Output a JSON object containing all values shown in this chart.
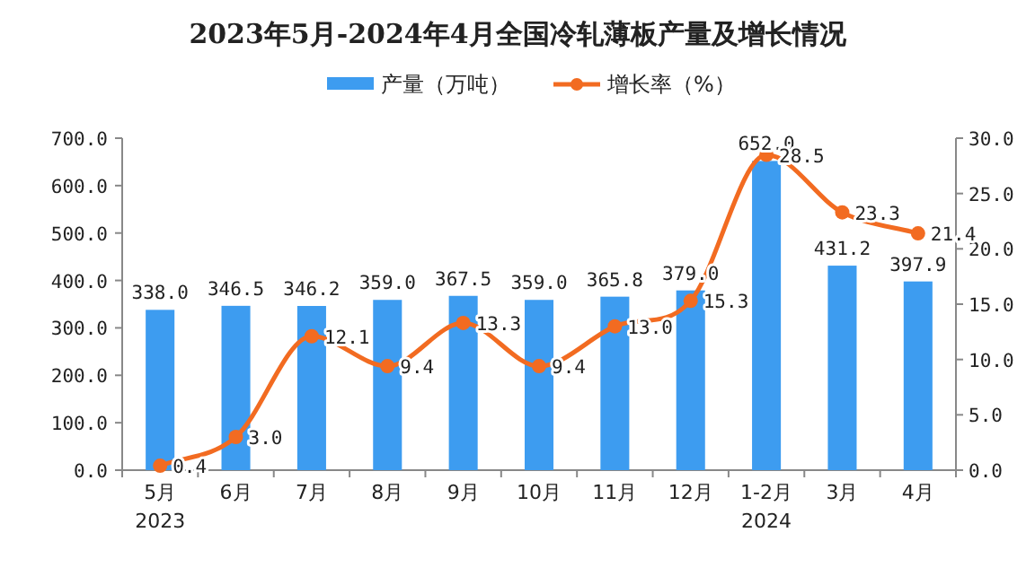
{
  "chart_data": {
    "type": "bar",
    "title": "2023年5月-2024年4月全国冷轧薄板产量及增长情况",
    "categories": [
      "5月\n2023",
      "6月",
      "7月",
      "8月",
      "9月",
      "10月",
      "11月",
      "12月",
      "1-2月\n2024",
      "3月",
      "4月"
    ],
    "series": [
      {
        "name": "产量（万吨）",
        "color": "#3d9cf0",
        "values": [
          338.0,
          346.5,
          346.2,
          359.0,
          367.5,
          359.0,
          365.8,
          379.0,
          652.0,
          431.2,
          397.9
        ],
        "value_labels": [
          "338.0",
          "346.5",
          "346.2",
          "359.0",
          "367.5",
          "359.0",
          "365.8",
          "379.0",
          "652.0",
          "431.2",
          "397.9"
        ]
      },
      {
        "name": "增长率（%）",
        "type": "line",
        "axis": "y2",
        "color": "#f26b21",
        "values": [
          0.4,
          3.0,
          12.1,
          9.4,
          13.3,
          9.4,
          13.0,
          15.3,
          28.5,
          23.3,
          21.4
        ],
        "value_labels": [
          "0.4",
          "3.0",
          "12.1",
          "9.4",
          "13.3",
          "9.4",
          "13.0",
          "15.3",
          "28.5",
          "23.3",
          "21.4"
        ]
      }
    ],
    "ylim": [
      0,
      700
    ],
    "yticks": [
      {
        "value": 0,
        "label": "0.0"
      },
      {
        "value": 100,
        "label": "100.0"
      },
      {
        "value": 200,
        "label": "200.0"
      },
      {
        "value": 300,
        "label": "300.0"
      },
      {
        "value": 400,
        "label": "400.0"
      },
      {
        "value": 500,
        "label": "500.0"
      },
      {
        "value": 600,
        "label": "600.0"
      },
      {
        "value": 700,
        "label": "700.0"
      }
    ],
    "y2lim": [
      0,
      30
    ],
    "y2ticks": [
      {
        "value": 0,
        "label": "0.0"
      },
      {
        "value": 5,
        "label": "5.0"
      },
      {
        "value": 10,
        "label": "10.0"
      },
      {
        "value": 15,
        "label": "15.0"
      },
      {
        "value": 20,
        "label": "20.0"
      },
      {
        "value": 25,
        "label": "25.0"
      },
      {
        "value": 30,
        "label": "30.0"
      }
    ],
    "legend": "top",
    "marker": "circle"
  }
}
